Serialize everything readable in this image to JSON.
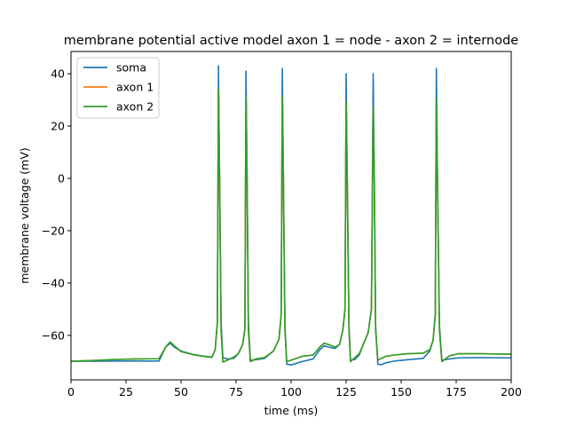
{
  "chart_data": {
    "type": "line",
    "title": "membrane potential active model  axon 1 = node - axon 2 = internode",
    "xlabel": "time (ms)",
    "ylabel": "membrane voltage (mV)",
    "xlim": [
      0,
      200
    ],
    "ylim": [
      -77,
      48.5
    ],
    "x_ticks": [
      0,
      25,
      50,
      75,
      100,
      125,
      150,
      175,
      200
    ],
    "x_tick_labels": [
      "0",
      "25",
      "50",
      "75",
      "100",
      "125",
      "150",
      "175",
      "200"
    ],
    "y_ticks": [
      -60,
      -40,
      -20,
      0,
      20,
      40
    ],
    "y_tick_labels": [
      "−60",
      "−40",
      "−20",
      "0",
      "20",
      "40"
    ],
    "grid": false,
    "legend_position": "top-left",
    "series": [
      {
        "name": "soma",
        "color": "#1f77b4",
        "x": [
          0,
          10,
          20,
          30,
          40,
          43,
          45,
          47,
          50,
          55,
          60,
          64,
          65.5,
          66.5,
          67,
          67.5,
          68.2,
          69,
          71,
          74,
          76,
          78,
          79,
          79.5,
          80,
          80.6,
          81.5,
          84,
          88,
          92,
          94.5,
          95.5,
          96,
          96.5,
          97.2,
          98,
          100,
          105,
          110,
          113,
          115,
          117,
          120,
          122,
          123.5,
          124.5,
          125,
          125.5,
          126.3,
          127,
          129,
          131,
          133,
          135,
          136.5,
          137.3,
          137.8,
          138.4,
          139.4,
          141,
          143,
          147,
          153,
          160,
          163,
          164.5,
          165.5,
          166,
          166.5,
          167.4,
          168.5,
          172,
          176,
          185,
          200
        ],
        "values": [
          -69.9,
          -69.9,
          -69.8,
          -69.8,
          -69.8,
          -64.5,
          -63.0,
          -64.5,
          -66.0,
          -67.2,
          -67.9,
          -68.3,
          -65.5,
          -55.0,
          43.0,
          0.0,
          -55.0,
          -68.5,
          -69.0,
          -68.8,
          -67.0,
          -63.5,
          -57.5,
          41.0,
          0.0,
          -55.0,
          -69.5,
          -69.3,
          -68.8,
          -66.0,
          -61.5,
          -52.0,
          42.0,
          0.0,
          -56.0,
          -71.0,
          -71.3,
          -70.0,
          -69.0,
          -65.5,
          -64.0,
          -64.5,
          -65.0,
          -63.5,
          -58.0,
          -50.0,
          40.0,
          0.0,
          -56.0,
          -69.5,
          -69.2,
          -67.5,
          -63.0,
          -59.0,
          -50.0,
          40.0,
          0.0,
          -56.0,
          -71.0,
          -71.2,
          -70.5,
          -69.8,
          -69.3,
          -68.8,
          -66.0,
          -62.0,
          -52.0,
          42.0,
          0.0,
          -56.0,
          -69.5,
          -69.0,
          -68.6,
          -68.5,
          -68.6
        ]
      },
      {
        "name": "axon 1",
        "color": "#ff7f0e",
        "x": [
          0,
          10,
          20,
          30,
          40,
          43,
          45,
          47,
          50,
          55,
          60,
          64,
          65.5,
          66.5,
          67,
          67.5,
          68.2,
          69,
          71,
          74,
          76,
          78,
          79,
          79.5,
          80,
          80.6,
          81.5,
          84,
          88,
          92,
          94.5,
          95.5,
          96,
          96.5,
          97.2,
          98,
          100,
          105,
          110,
          113,
          115,
          117,
          120,
          122,
          123.5,
          124.5,
          125,
          125.5,
          126.3,
          127,
          129,
          131,
          133,
          135,
          136.5,
          137.3,
          137.8,
          138.4,
          139.4,
          141,
          143,
          147,
          153,
          160,
          163,
          164.5,
          165.5,
          166,
          166.5,
          167.4,
          168.5,
          172,
          176,
          185,
          200
        ],
        "values": [
          -69.9,
          -69.6,
          -69.2,
          -69.0,
          -68.9,
          -64.5,
          -62.5,
          -64.0,
          -66.2,
          -67.3,
          -68.0,
          -68.4,
          -65.5,
          -55.0,
          34.0,
          0.0,
          -58.0,
          -70.2,
          -69.5,
          -68.3,
          -67.0,
          -63.5,
          -57.5,
          31.0,
          0.0,
          -58.0,
          -70.0,
          -69.0,
          -68.5,
          -66.0,
          -61.5,
          -52.0,
          31.0,
          0.0,
          -58.0,
          -70.0,
          -69.5,
          -68.0,
          -67.5,
          -64.5,
          -63.0,
          -63.5,
          -64.5,
          -63.5,
          -58.0,
          -50.0,
          29.0,
          0.0,
          -58.0,
          -70.0,
          -68.5,
          -67.0,
          -63.0,
          -59.0,
          -50.0,
          27.5,
          0.0,
          -58.0,
          -69.5,
          -68.8,
          -68.0,
          -67.5,
          -67.0,
          -66.8,
          -65.5,
          -62.0,
          -52.0,
          30.5,
          0.0,
          -58.0,
          -70.0,
          -67.8,
          -67.0,
          -67.0,
          -67.2
        ]
      },
      {
        "name": "axon 2",
        "color": "#2ca02c",
        "x": [
          0,
          10,
          20,
          30,
          40,
          43,
          45,
          47,
          50,
          55,
          60,
          64,
          65.5,
          66.5,
          67,
          67.5,
          68.2,
          69,
          71,
          74,
          76,
          78,
          79,
          79.5,
          80,
          80.6,
          81.5,
          84,
          88,
          92,
          94.5,
          95.5,
          96,
          96.5,
          97.2,
          98,
          100,
          105,
          110,
          113,
          115,
          117,
          120,
          122,
          123.5,
          124.5,
          125,
          125.5,
          126.3,
          127,
          129,
          131,
          133,
          135,
          136.5,
          137.3,
          137.8,
          138.4,
          139.4,
          141,
          143,
          147,
          153,
          160,
          163,
          164.5,
          165.5,
          166,
          166.5,
          167.4,
          168.5,
          172,
          176,
          185,
          200
        ],
        "values": [
          -69.9,
          -69.6,
          -69.2,
          -69.0,
          -68.9,
          -64.5,
          -62.5,
          -64.0,
          -66.2,
          -67.3,
          -68.0,
          -68.4,
          -65.5,
          -55.0,
          34.0,
          0.0,
          -58.0,
          -70.2,
          -69.5,
          -68.3,
          -67.0,
          -63.5,
          -57.5,
          31.0,
          0.0,
          -58.0,
          -70.0,
          -69.0,
          -68.5,
          -66.0,
          -61.5,
          -52.0,
          31.0,
          0.0,
          -58.0,
          -70.0,
          -69.5,
          -68.0,
          -67.5,
          -64.5,
          -63.0,
          -63.5,
          -64.5,
          -63.5,
          -58.0,
          -50.0,
          29.0,
          0.0,
          -58.0,
          -70.0,
          -68.5,
          -67.0,
          -63.0,
          -59.0,
          -50.0,
          27.5,
          0.0,
          -58.0,
          -69.5,
          -68.8,
          -68.0,
          -67.5,
          -67.0,
          -66.8,
          -65.5,
          -62.0,
          -52.0,
          30.5,
          0.0,
          -58.0,
          -70.0,
          -67.8,
          -67.0,
          -67.0,
          -67.2
        ]
      }
    ]
  }
}
